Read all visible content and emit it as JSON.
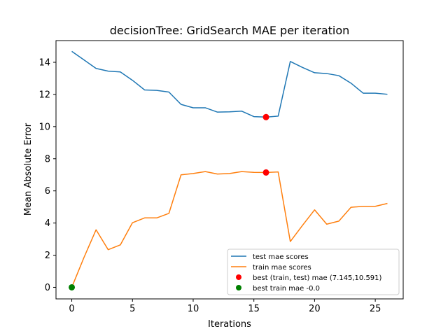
{
  "chart_data": {
    "type": "line",
    "title": "decisionTree: GridSearch MAE per iteration",
    "xlabel": "Iterations",
    "ylabel": "Mean Absolute Error",
    "xlim": [
      -1.3,
      27.3
    ],
    "ylim": [
      -0.72,
      15.35
    ],
    "xticks": [
      0,
      5,
      10,
      15,
      20,
      25
    ],
    "yticks": [
      0,
      2,
      4,
      6,
      8,
      10,
      12,
      14
    ],
    "x": [
      0,
      1,
      2,
      3,
      4,
      5,
      6,
      7,
      8,
      9,
      10,
      11,
      12,
      13,
      14,
      15,
      16,
      17,
      18,
      19,
      20,
      21,
      22,
      23,
      24,
      25,
      26
    ],
    "series": [
      {
        "name": "test mae scores",
        "color": "#1f77b4",
        "values": [
          14.68,
          14.15,
          13.62,
          13.45,
          13.4,
          12.88,
          12.28,
          12.25,
          12.15,
          11.38,
          11.17,
          11.17,
          10.9,
          10.92,
          10.96,
          10.62,
          10.59,
          10.65,
          14.05,
          13.68,
          13.35,
          13.3,
          13.17,
          12.7,
          12.08,
          12.08,
          12.01
        ]
      },
      {
        "name": "train mae scores",
        "color": "#ff7f0e",
        "values": [
          0.0,
          1.85,
          3.58,
          2.34,
          2.64,
          4.02,
          4.32,
          4.32,
          4.6,
          7.0,
          7.08,
          7.2,
          7.05,
          7.08,
          7.2,
          7.15,
          7.145,
          7.18,
          2.85,
          3.85,
          4.82,
          3.93,
          4.12,
          4.98,
          5.04,
          5.04,
          5.22
        ]
      }
    ],
    "markers": [
      {
        "name": "best (train, test) mae (7.145,10.591)",
        "color": "#ff0000",
        "points": [
          [
            16,
            7.145
          ],
          [
            16,
            10.591
          ]
        ]
      },
      {
        "name": "best train mae -0.0",
        "color": "#008000",
        "points": [
          [
            0,
            0.0
          ]
        ]
      }
    ],
    "legend_position": "lower-right"
  }
}
